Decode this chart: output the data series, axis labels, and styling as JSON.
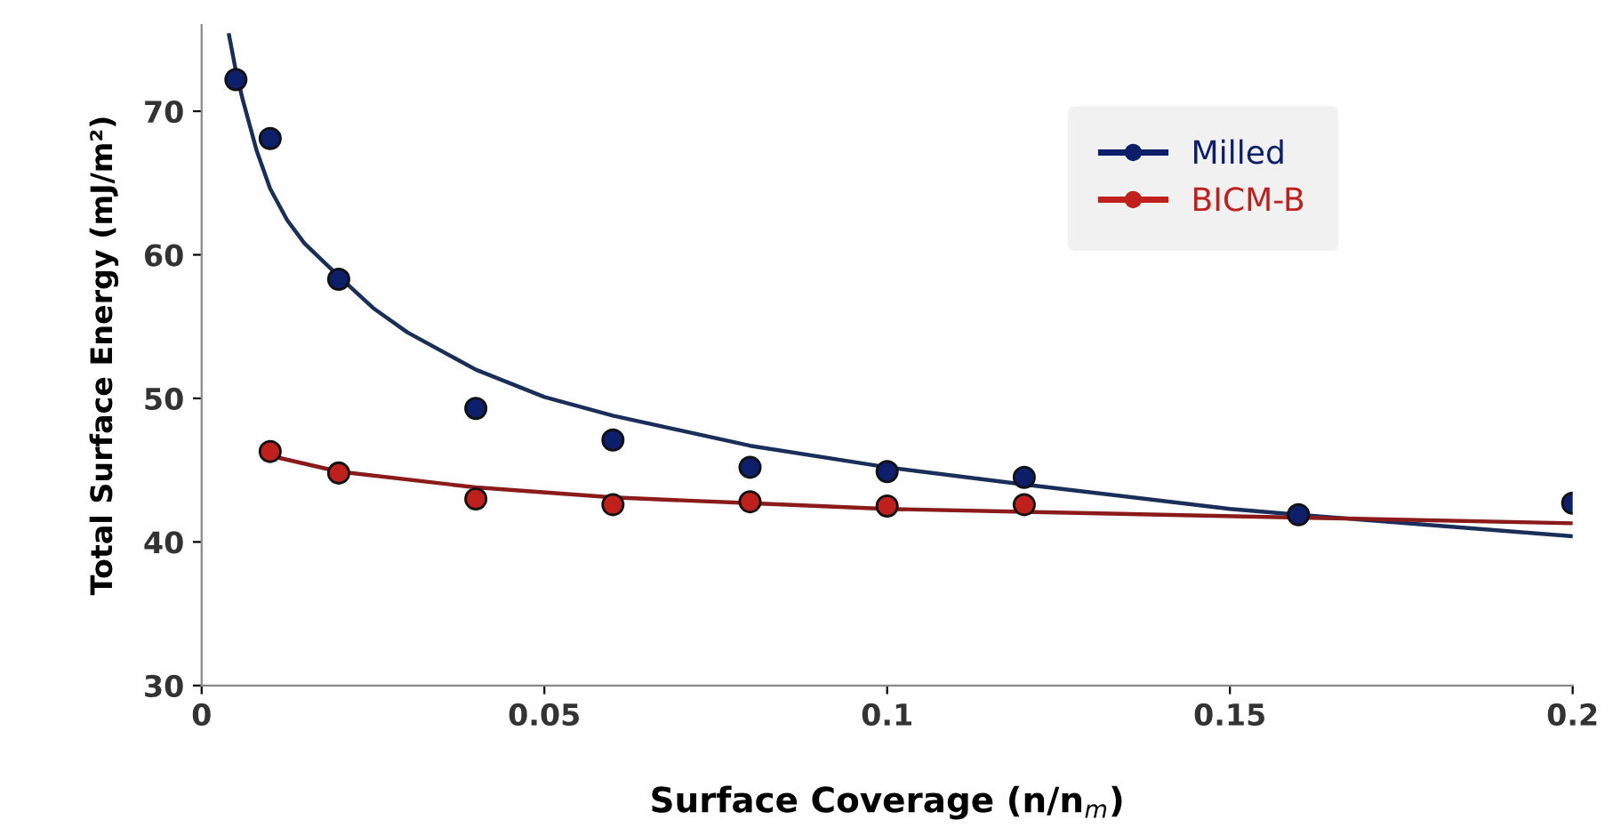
{
  "chart_data": {
    "type": "scatter",
    "xlabel": "Surface Coverage (n/n$_{m}$)",
    "ylabel": "Total Surface Energy (mJ/m²)",
    "xlim": [
      0,
      0.2
    ],
    "ylim": [
      30,
      76
    ],
    "xticks": [
      0,
      0.05,
      0.1,
      0.15,
      0.2
    ],
    "yticks": [
      30,
      40,
      50,
      60,
      70
    ],
    "grid": false,
    "legend": "top right",
    "marker": "circle",
    "series": [
      {
        "name": "Milled",
        "color": "#0d1f6b",
        "x": [
          0.005,
          0.01,
          0.02,
          0.04,
          0.06,
          0.08,
          0.1,
          0.12,
          0.16,
          0.2
        ],
        "values": [
          72.2,
          68.1,
          58.3,
          49.3,
          47.1,
          45.2,
          44.9,
          44.5,
          41.9,
          42.7
        ]
      },
      {
        "name": "BICM-B",
        "color": "#c0201c",
        "x": [
          0.01,
          0.02,
          0.04,
          0.06,
          0.08,
          0.1,
          0.12
        ],
        "values": [
          46.3,
          44.8,
          43.0,
          42.6,
          42.8,
          42.5,
          42.6
        ]
      },
      {
        "type": "line",
        "color": "#1a2e5a",
        "marker": "none",
        "x": [
          0.004,
          0.005,
          0.006,
          0.008,
          0.01,
          0.0125,
          0.015,
          0.02,
          0.025,
          0.03,
          0.04,
          0.05,
          0.06,
          0.08,
          0.1,
          0.12,
          0.15,
          0.16,
          0.2
        ],
        "values": [
          75.3,
          72.8,
          70.8,
          67.3,
          64.6,
          62.4,
          60.8,
          58.5,
          56.3,
          54.6,
          52.0,
          50.1,
          48.8,
          46.7,
          45.2,
          44.0,
          42.3,
          41.9,
          40.4
        ]
      },
      {
        "type": "line",
        "color": "#8b1a1a",
        "marker": "none",
        "x": [
          0.01,
          0.02,
          0.04,
          0.06,
          0.08,
          0.1,
          0.12,
          0.16,
          0.2
        ],
        "values": [
          46.0,
          44.9,
          43.8,
          43.1,
          42.7,
          42.3,
          42.1,
          41.7,
          41.3
        ]
      }
    ]
  }
}
